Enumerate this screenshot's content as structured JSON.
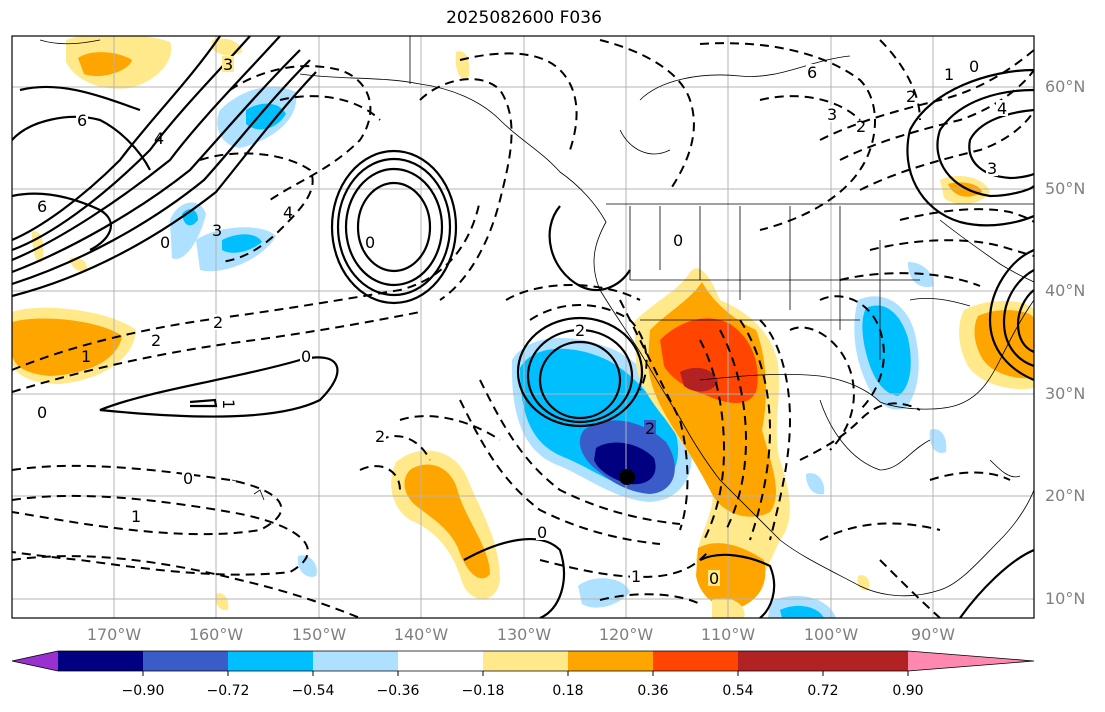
{
  "title": "2025082600 F036",
  "latitude_labels": [
    "60°N",
    "50°N",
    "40°N",
    "30°N",
    "20°N",
    "10°N"
  ],
  "longitude_labels": [
    "170°W",
    "160°W",
    "150°W",
    "140°W",
    "130°W",
    "120°W",
    "110°W",
    "100°W",
    "90°W"
  ],
  "colorbar": {
    "tick_labels": [
      "−0.90",
      "−0.72",
      "−0.54",
      "−0.36",
      "−0.18",
      "0.18",
      "0.36",
      "0.54",
      "0.72",
      "0.90"
    ],
    "colors": [
      "#9b30d0",
      "#000080",
      "#3a5cc8",
      "#00bfff",
      "#aee0ff",
      "#ffffff",
      "#ffe98a",
      "#ffa500",
      "#ff4500",
      "#b22222",
      "#ff88b0"
    ]
  },
  "contour_labels": [
    "3",
    "6",
    "4",
    "6",
    "0",
    "4",
    "3",
    "0",
    "2",
    "2",
    "1",
    "0",
    "0",
    "1",
    "0",
    "1",
    "2",
    "0",
    "2",
    "2",
    "6",
    "3",
    "2",
    "4",
    "3",
    "2",
    "1",
    "0",
    "0",
    "1",
    "0"
  ],
  "colors": {
    "axis": "#000000",
    "grid": "#b4b4b4",
    "label_gray": "#808080"
  }
}
